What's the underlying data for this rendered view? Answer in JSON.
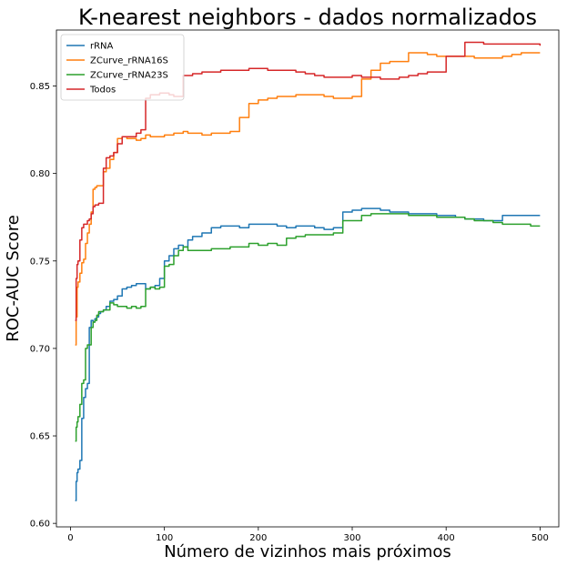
{
  "chart_data": {
    "type": "line",
    "title": "K-nearest neighbors - dados normalizados",
    "xlabel": "Número de vizinhos mais próximos",
    "ylabel": "ROC-AUC Score",
    "xlim": [
      -15,
      520
    ],
    "ylim": [
      0.598,
      0.882
    ],
    "xticks": [
      0,
      100,
      200,
      300,
      400,
      500
    ],
    "yticks": [
      0.6,
      0.65,
      0.7,
      0.75,
      0.8,
      0.85
    ],
    "xtick_labels": [
      "0",
      "100",
      "200",
      "300",
      "400",
      "500"
    ],
    "ytick_labels": [
      "0.60",
      "0.65",
      "0.70",
      "0.75",
      "0.80",
      "0.85"
    ],
    "grid": false,
    "legend_position": "top-left",
    "step": true,
    "series": [
      {
        "name": "rRNA",
        "color": "#1f77b4",
        "x": [
          5,
          6,
          7,
          8,
          10,
          12,
          14,
          16,
          18,
          20,
          22,
          24,
          26,
          28,
          30,
          32,
          35,
          38,
          42,
          46,
          50,
          55,
          60,
          65,
          70,
          75,
          80,
          85,
          90,
          95,
          100,
          105,
          110,
          115,
          120,
          125,
          130,
          140,
          150,
          160,
          170,
          180,
          190,
          200,
          210,
          220,
          230,
          240,
          250,
          260,
          270,
          280,
          290,
          300,
          310,
          320,
          330,
          340,
          350,
          360,
          370,
          380,
          390,
          400,
          410,
          420,
          430,
          440,
          450,
          460,
          470,
          480,
          490,
          500
        ],
        "y": [
          0.613,
          0.624,
          0.629,
          0.631,
          0.636,
          0.66,
          0.672,
          0.677,
          0.68,
          0.712,
          0.716,
          0.715,
          0.717,
          0.718,
          0.72,
          0.721,
          0.722,
          0.724,
          0.727,
          0.728,
          0.73,
          0.734,
          0.735,
          0.736,
          0.737,
          0.737,
          0.734,
          0.735,
          0.736,
          0.74,
          0.75,
          0.753,
          0.757,
          0.759,
          0.758,
          0.762,
          0.764,
          0.766,
          0.769,
          0.77,
          0.77,
          0.769,
          0.771,
          0.771,
          0.771,
          0.77,
          0.769,
          0.77,
          0.77,
          0.769,
          0.768,
          0.769,
          0.778,
          0.779,
          0.78,
          0.78,
          0.779,
          0.778,
          0.778,
          0.777,
          0.777,
          0.777,
          0.776,
          0.776,
          0.775,
          0.774,
          0.774,
          0.773,
          0.773,
          0.776,
          0.776,
          0.776,
          0.776,
          0.776
        ]
      },
      {
        "name": "ZCurve_rRNA16S",
        "color": "#ff7f0e",
        "x": [
          5,
          6,
          7,
          8,
          10,
          12,
          14,
          16,
          18,
          20,
          22,
          24,
          26,
          28,
          30,
          32,
          35,
          38,
          42,
          46,
          50,
          55,
          60,
          65,
          70,
          75,
          80,
          85,
          90,
          95,
          100,
          105,
          110,
          115,
          120,
          125,
          130,
          140,
          150,
          160,
          170,
          180,
          190,
          200,
          210,
          220,
          230,
          240,
          250,
          260,
          270,
          280,
          290,
          300,
          310,
          320,
          330,
          340,
          350,
          360,
          370,
          380,
          390,
          400,
          410,
          420,
          430,
          440,
          450,
          460,
          470,
          480,
          490,
          500
        ],
        "y": [
          0.702,
          0.718,
          0.735,
          0.738,
          0.743,
          0.749,
          0.751,
          0.76,
          0.766,
          0.771,
          0.778,
          0.791,
          0.792,
          0.793,
          0.793,
          0.793,
          0.801,
          0.803,
          0.808,
          0.812,
          0.82,
          0.821,
          0.82,
          0.82,
          0.819,
          0.82,
          0.822,
          0.821,
          0.821,
          0.821,
          0.822,
          0.822,
          0.823,
          0.823,
          0.824,
          0.823,
          0.823,
          0.822,
          0.823,
          0.823,
          0.824,
          0.832,
          0.84,
          0.842,
          0.843,
          0.844,
          0.844,
          0.845,
          0.845,
          0.845,
          0.844,
          0.843,
          0.843,
          0.844,
          0.854,
          0.859,
          0.863,
          0.864,
          0.864,
          0.869,
          0.869,
          0.868,
          0.867,
          0.867,
          0.867,
          0.867,
          0.866,
          0.866,
          0.866,
          0.867,
          0.868,
          0.869,
          0.869,
          0.869
        ]
      },
      {
        "name": "ZCurve_rRNA23S",
        "color": "#2ca02c",
        "x": [
          5,
          6,
          7,
          8,
          10,
          12,
          14,
          16,
          18,
          20,
          22,
          24,
          26,
          28,
          30,
          32,
          35,
          38,
          42,
          46,
          50,
          55,
          60,
          65,
          70,
          75,
          80,
          85,
          90,
          95,
          100,
          105,
          110,
          115,
          120,
          125,
          130,
          140,
          150,
          160,
          170,
          180,
          190,
          200,
          210,
          220,
          230,
          240,
          250,
          260,
          270,
          280,
          290,
          300,
          310,
          320,
          330,
          340,
          350,
          360,
          370,
          380,
          390,
          400,
          410,
          420,
          430,
          440,
          450,
          460,
          470,
          480,
          490,
          500
        ],
        "y": [
          0.647,
          0.655,
          0.658,
          0.661,
          0.668,
          0.68,
          0.682,
          0.7,
          0.702,
          0.702,
          0.712,
          0.715,
          0.716,
          0.719,
          0.721,
          0.721,
          0.722,
          0.722,
          0.726,
          0.725,
          0.724,
          0.724,
          0.723,
          0.724,
          0.723,
          0.724,
          0.734,
          0.735,
          0.734,
          0.735,
          0.747,
          0.748,
          0.753,
          0.756,
          0.758,
          0.756,
          0.756,
          0.756,
          0.757,
          0.757,
          0.758,
          0.758,
          0.76,
          0.759,
          0.76,
          0.759,
          0.763,
          0.764,
          0.765,
          0.765,
          0.765,
          0.766,
          0.773,
          0.773,
          0.776,
          0.777,
          0.777,
          0.777,
          0.777,
          0.776,
          0.776,
          0.776,
          0.775,
          0.775,
          0.775,
          0.774,
          0.773,
          0.773,
          0.772,
          0.771,
          0.771,
          0.771,
          0.77,
          0.77
        ]
      },
      {
        "name": "Todos",
        "color": "#d62728",
        "x": [
          5,
          6,
          7,
          8,
          10,
          12,
          14,
          16,
          18,
          20,
          22,
          24,
          26,
          28,
          30,
          32,
          35,
          38,
          42,
          46,
          50,
          55,
          60,
          65,
          70,
          75,
          80,
          85,
          90,
          95,
          100,
          105,
          110,
          115,
          120,
          125,
          130,
          140,
          150,
          160,
          170,
          180,
          190,
          200,
          210,
          220,
          230,
          240,
          250,
          260,
          270,
          280,
          290,
          300,
          310,
          320,
          330,
          340,
          350,
          360,
          370,
          380,
          390,
          400,
          410,
          420,
          430,
          440,
          450,
          460,
          470,
          480,
          490,
          500
        ],
        "y": [
          0.716,
          0.74,
          0.748,
          0.75,
          0.762,
          0.769,
          0.771,
          0.771,
          0.773,
          0.774,
          0.777,
          0.781,
          0.782,
          0.782,
          0.783,
          0.783,
          0.803,
          0.809,
          0.81,
          0.812,
          0.817,
          0.821,
          0.821,
          0.821,
          0.823,
          0.825,
          0.843,
          0.845,
          0.845,
          0.846,
          0.846,
          0.845,
          0.844,
          0.844,
          0.856,
          0.856,
          0.857,
          0.858,
          0.858,
          0.859,
          0.859,
          0.859,
          0.86,
          0.86,
          0.859,
          0.859,
          0.859,
          0.858,
          0.857,
          0.856,
          0.855,
          0.855,
          0.855,
          0.856,
          0.855,
          0.855,
          0.854,
          0.854,
          0.855,
          0.856,
          0.857,
          0.858,
          0.858,
          0.867,
          0.867,
          0.875,
          0.875,
          0.874,
          0.874,
          0.874,
          0.874,
          0.874,
          0.874,
          0.873
        ]
      }
    ]
  }
}
